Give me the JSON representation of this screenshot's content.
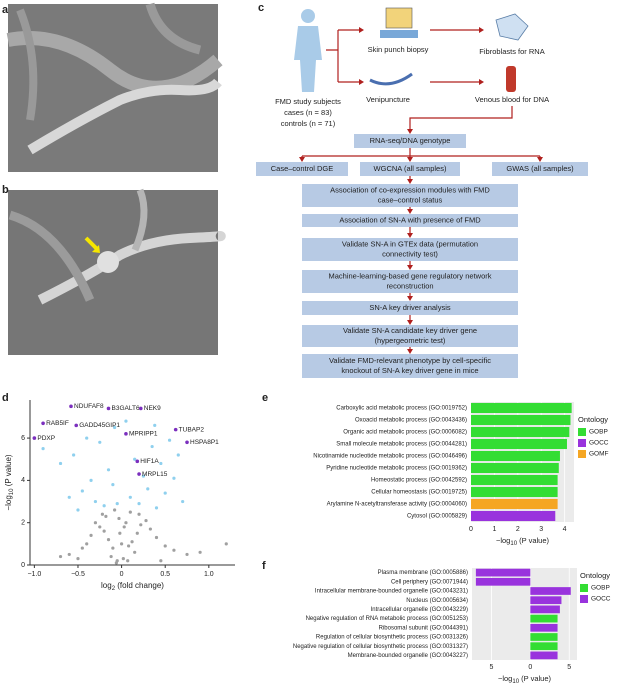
{
  "panel_labels": [
    "a",
    "b",
    "c",
    "d",
    "e",
    "f"
  ],
  "flowchart": {
    "subjects": [
      "FMD study subjects",
      "cases (n = 83)",
      "controls (n = 71)"
    ],
    "samples": [
      "Skin punch biopsy",
      "Venipuncture"
    ],
    "products": [
      "Fibroblasts for RNA",
      "Venous blood for DNA"
    ],
    "genotype": "RNA-seq/DNA genotype",
    "analyses": [
      "Case–control DGE",
      "WGCNA (all samples)",
      "GWAS (all samples)"
    ],
    "steps": [
      [
        "Association of co-expression modules with FMD",
        "case–control status"
      ],
      [
        "Association of SN-A with presence of FMD"
      ],
      [
        "Validate SN-A in GTEx data (permutation",
        "connectivity test)"
      ],
      [
        "Machine-learning-based gene regulatory network",
        "reconstruction"
      ],
      [
        "SN-A key driver analysis"
      ],
      [
        "Validate SN-A candidate key driver gene",
        "(hypergeometric test)"
      ],
      [
        "Validate FMD-relevant phenotype by cell-specific",
        "knockout of SN-A key driver gene in mice"
      ]
    ]
  },
  "chart_data": [
    {
      "type": "scatter",
      "xlabel": {
        "pre": "log",
        "sub": "2",
        "post": " (fold change)"
      },
      "ylabel": {
        "pre": "−log",
        "sub": "10",
        "post": " (P value)"
      },
      "xlim": [
        -1.05,
        1.3
      ],
      "ylim": [
        0,
        7.8
      ],
      "xticks": [
        {
          "value": -1,
          "label": "−1.0"
        },
        {
          "value": -0.5,
          "label": "−0.5"
        },
        0,
        0.5,
        {
          "value": 1,
          "label": "1.0"
        }
      ],
      "yticks": [
        0,
        2,
        4,
        6
      ],
      "series": [
        {
          "color": "#a0a0a0",
          "x": [
            -0.05,
            0.02,
            -0.1,
            0.08,
            -0.15,
            0.12,
            -0.2,
            0.18,
            -0.25,
            0.22,
            -0.3,
            0.28,
            -0.35,
            0.33,
            -0.4,
            0.4,
            -0.45,
            0.5,
            -0.6,
            0.6,
            -0.03,
            0.05,
            -0.08,
            0.1,
            0.0,
            -0.12,
            0.15,
            -0.18,
            0.2,
            -0.5,
            0.45,
            -0.7,
            0.75,
            0.9,
            1.2,
            -0.02,
            0.03,
            -0.06,
            0.07,
            -0.22
          ],
          "values": [
            0.2,
            0.3,
            0.8,
            0.9,
            1.2,
            1.1,
            1.6,
            1.5,
            1.8,
            1.9,
            2.0,
            2.1,
            1.4,
            1.7,
            1.0,
            1.3,
            0.8,
            0.9,
            0.5,
            0.7,
            2.2,
            2.0,
            2.6,
            2.5,
            1.0,
            0.4,
            0.6,
            2.3,
            2.4,
            0.3,
            0.2,
            0.4,
            0.5,
            0.6,
            1.0,
            1.5,
            1.8,
            0.1,
            0.2,
            2.4
          ]
        },
        {
          "color": "#8fd0ee",
          "x": [
            -0.9,
            -0.7,
            -0.55,
            -0.45,
            -0.35,
            -0.3,
            -0.25,
            -0.2,
            -0.15,
            -0.1,
            -0.08,
            0.1,
            0.15,
            0.2,
            0.25,
            0.3,
            0.35,
            0.4,
            0.45,
            0.5,
            0.55,
            0.6,
            0.7,
            -0.6,
            -0.4,
            0.05,
            -0.05,
            0.65,
            -0.5,
            0.38
          ],
          "values": [
            5.5,
            4.8,
            5.2,
            3.5,
            4.0,
            3.0,
            5.8,
            2.8,
            4.5,
            3.8,
            6.5,
            3.2,
            5.0,
            2.9,
            4.2,
            3.6,
            5.6,
            2.7,
            4.8,
            3.4,
            5.9,
            4.1,
            3.0,
            3.2,
            6.0,
            6.8,
            2.9,
            5.2,
            2.6,
            6.6
          ]
        }
      ],
      "annotations": [
        {
          "text": "NDUFAF8",
          "x": -0.58,
          "y": 7.5,
          "color": "#7b2fbe"
        },
        {
          "text": "B3GALT6",
          "x": -0.15,
          "y": 7.4,
          "color": "#7b2fbe"
        },
        {
          "text": "NEK9",
          "x": 0.22,
          "y": 7.4,
          "color": "#7b2fbe"
        },
        {
          "text": "RAB5IF",
          "x": -0.9,
          "y": 6.7,
          "color": "#7b2fbe"
        },
        {
          "text": "GADD45GIP1",
          "x": -0.52,
          "y": 6.6,
          "color": "#7b2fbe"
        },
        {
          "text": "PDXP",
          "x": -1.0,
          "y": 6.0,
          "color": "#7b2fbe"
        },
        {
          "text": "MPRIPP1",
          "x": 0.05,
          "y": 6.2,
          "color": "#7b2fbe"
        },
        {
          "text": "TUBAP2",
          "x": 0.62,
          "y": 6.4,
          "color": "#7b2fbe"
        },
        {
          "text": "HSPA8P1",
          "x": 0.75,
          "y": 5.8,
          "color": "#7b2fbe"
        },
        {
          "text": "HIF1A",
          "x": 0.18,
          "y": 4.9,
          "color": "#7b2fbe"
        },
        {
          "text": "MRPL15",
          "x": 0.2,
          "y": 4.3,
          "color": "#7b2fbe"
        }
      ]
    },
    {
      "type": "barh",
      "categories": [
        "Carboxylic acid metabolic process (GO:0019752)",
        "Oxoacid metabolic process (GO:0043436)",
        "Organic acid metabolic process (GO:0006082)",
        "Small molecule metabolic process (GO:0044281)",
        "Nicotinamide nucleotide metabolic process (GO:0046496)",
        "Pyridine nucleotide metabolic process (GO:0019362)",
        "Homeostatic process (GO:0042592)",
        "Cellular homeostasis (GO:0019725)",
        "Arylamine N-acetyltransferase activity (GO:0004060)",
        "Cytosol (GO:0005829)"
      ],
      "values": [
        4.3,
        4.25,
        4.2,
        4.1,
        3.8,
        3.75,
        3.7,
        3.7,
        3.7,
        3.6
      ],
      "ontology": [
        "GOBP",
        "GOBP",
        "GOBP",
        "GOBP",
        "GOBP",
        "GOBP",
        "GOBP",
        "GOBP",
        "GOMF",
        "GOCC"
      ],
      "legend_title": "Ontology",
      "legend": [
        {
          "label": "GOBP",
          "color": "#33dd33"
        },
        {
          "label": "GOCC",
          "color": "#9933dd"
        },
        {
          "label": "GOMF",
          "color": "#f5a623"
        }
      ],
      "xlabel": {
        "pre": "−log",
        "sub": "10",
        "post": " (P value)"
      },
      "xlim": [
        0,
        4.4
      ],
      "xticks": [
        0,
        1,
        2,
        3,
        4
      ],
      "grid": true
    },
    {
      "type": "barh",
      "categories": [
        "Plasma membrane (GO:0005886)",
        "Cell periphery (GO:0071944)",
        "Intracellular membrane-bounded organelle (GO:0043231)",
        "Nucleus (GO:0005634)",
        "Intracellular organelle (GO:0043229)",
        "Negative regulation of RNA metabolic process (GO:0051253)",
        "Ribosomal subunit (GO:0044391)",
        "Regulation of cellular biosynthetic process (GO:0031326)",
        "Negative regulation of cellular biosynthetic process (GO:0031327)",
        "Membrane-bounded organelle (GO:0043227)"
      ],
      "values": [
        -7,
        -7,
        5.2,
        4.0,
        3.8,
        3.5,
        3.5,
        3.5,
        3.5,
        3.5
      ],
      "ontology": [
        "GOCC",
        "GOCC",
        "GOCC",
        "GOCC",
        "GOCC",
        "GOBP",
        "GOCC",
        "GOBP",
        "GOBP",
        "GOCC"
      ],
      "legend_title": "Ontology",
      "legend": [
        {
          "label": "GOBP",
          "color": "#33dd33"
        },
        {
          "label": "GOCC",
          "color": "#9933dd"
        }
      ],
      "xlabel": {
        "pre": "−log",
        "sub": "10",
        "post": " (P value)"
      },
      "xlim": [
        -7.5,
        6.0
      ],
      "xticks": [
        {
          "value": -5,
          "label": "5"
        },
        0,
        5
      ],
      "grid": true
    }
  ]
}
